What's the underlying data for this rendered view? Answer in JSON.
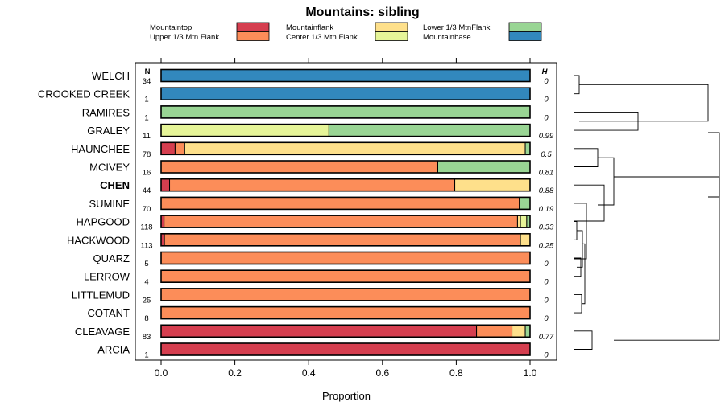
{
  "chart_data": {
    "type": "bar",
    "stacked": true,
    "orientation": "horizontal",
    "title": "Mountains: sibling",
    "xlabel": "Proportion",
    "xlim": [
      0,
      1
    ],
    "xticks": [
      "0.0",
      "0.2",
      "0.4",
      "0.6",
      "0.8",
      "1.0"
    ],
    "n_header": "N",
    "h_header": "H",
    "legend": [
      {
        "name": "Mountaintop",
        "color": "#d53e4f"
      },
      {
        "name": "Upper 1/3 Mtn Flank",
        "color": "#fc8d59"
      },
      {
        "name": "Mountainflank",
        "color": "#fee08b"
      },
      {
        "name": "Center 1/3 Mtn Flank",
        "color": "#e6f598"
      },
      {
        "name": "Lower 1/3 MtnFlank",
        "color": "#99d594"
      },
      {
        "name": "Mountainbase",
        "color": "#3288bd"
      }
    ],
    "rows": [
      {
        "label": "WELCH",
        "n": "34",
        "h": "0",
        "bold": false,
        "segments": [
          {
            "cat": "Mountainbase",
            "value": 1.0
          }
        ]
      },
      {
        "label": "CROOKED CREEK",
        "n": "1",
        "h": "0",
        "bold": false,
        "segments": [
          {
            "cat": "Mountainbase",
            "value": 1.0
          }
        ]
      },
      {
        "label": "RAMIRES",
        "n": "1",
        "h": "0",
        "bold": false,
        "segments": [
          {
            "cat": "Lower 1/3 MtnFlank",
            "value": 1.0
          }
        ]
      },
      {
        "label": "GRALEY",
        "n": "11",
        "h": "0.99",
        "bold": false,
        "segments": [
          {
            "cat": "Center 1/3 Mtn Flank",
            "value": 0.455
          },
          {
            "cat": "Lower 1/3 MtnFlank",
            "value": 0.545
          }
        ]
      },
      {
        "label": "HAUNCHEE",
        "n": "78",
        "h": "0.5",
        "bold": false,
        "segments": [
          {
            "cat": "Mountaintop",
            "value": 0.038
          },
          {
            "cat": "Upper 1/3 Mtn Flank",
            "value": 0.026
          },
          {
            "cat": "Mountainflank",
            "value": 0.923
          },
          {
            "cat": "Lower 1/3 MtnFlank",
            "value": 0.013
          }
        ]
      },
      {
        "label": "MCIVEY",
        "n": "16",
        "h": "0.81",
        "bold": false,
        "segments": [
          {
            "cat": "Upper 1/3 Mtn Flank",
            "value": 0.75
          },
          {
            "cat": "Lower 1/3 MtnFlank",
            "value": 0.25
          }
        ]
      },
      {
        "label": "CHEN",
        "n": "44",
        "h": "0.88",
        "bold": true,
        "segments": [
          {
            "cat": "Mountaintop",
            "value": 0.023
          },
          {
            "cat": "Upper 1/3 Mtn Flank",
            "value": 0.773
          },
          {
            "cat": "Mountainflank",
            "value": 0.204
          }
        ]
      },
      {
        "label": "SUMINE",
        "n": "70",
        "h": "0.19",
        "bold": false,
        "segments": [
          {
            "cat": "Upper 1/3 Mtn Flank",
            "value": 0.971
          },
          {
            "cat": "Lower 1/3 MtnFlank",
            "value": 0.029
          }
        ]
      },
      {
        "label": "HAPGOOD",
        "n": "118",
        "h": "0.33",
        "bold": false,
        "segments": [
          {
            "cat": "Mountaintop",
            "value": 0.008
          },
          {
            "cat": "Upper 1/3 Mtn Flank",
            "value": 0.958
          },
          {
            "cat": "Mountainflank",
            "value": 0.008
          },
          {
            "cat": "Center 1/3 Mtn Flank",
            "value": 0.017
          },
          {
            "cat": "Lower 1/3 MtnFlank",
            "value": 0.009
          }
        ]
      },
      {
        "label": "HACKWOOD",
        "n": "113",
        "h": "0.25",
        "bold": false,
        "segments": [
          {
            "cat": "Mountaintop",
            "value": 0.009
          },
          {
            "cat": "Upper 1/3 Mtn Flank",
            "value": 0.965
          },
          {
            "cat": "Mountainflank",
            "value": 0.026
          }
        ]
      },
      {
        "label": "QUARZ",
        "n": "5",
        "h": "0",
        "bold": false,
        "segments": [
          {
            "cat": "Upper 1/3 Mtn Flank",
            "value": 1.0
          }
        ]
      },
      {
        "label": "LERROW",
        "n": "4",
        "h": "0",
        "bold": false,
        "segments": [
          {
            "cat": "Upper 1/3 Mtn Flank",
            "value": 1.0
          }
        ]
      },
      {
        "label": "LITTLEMUD",
        "n": "25",
        "h": "0",
        "bold": false,
        "segments": [
          {
            "cat": "Upper 1/3 Mtn Flank",
            "value": 1.0
          }
        ]
      },
      {
        "label": "COTANT",
        "n": "8",
        "h": "0",
        "bold": false,
        "segments": [
          {
            "cat": "Upper 1/3 Mtn Flank",
            "value": 1.0
          }
        ]
      },
      {
        "label": "CLEAVAGE",
        "n": "83",
        "h": "0.77",
        "bold": false,
        "segments": [
          {
            "cat": "Mountaintop",
            "value": 0.855
          },
          {
            "cat": "Upper 1/3 Mtn Flank",
            "value": 0.096
          },
          {
            "cat": "Mountainflank",
            "value": 0.036
          },
          {
            "cat": "Lower 1/3 MtnFlank",
            "value": 0.013
          }
        ]
      },
      {
        "label": "ARCIA",
        "n": "1",
        "h": "0",
        "bold": false,
        "segments": [
          {
            "cat": "Mountaintop",
            "value": 1.0
          }
        ]
      }
    ]
  }
}
